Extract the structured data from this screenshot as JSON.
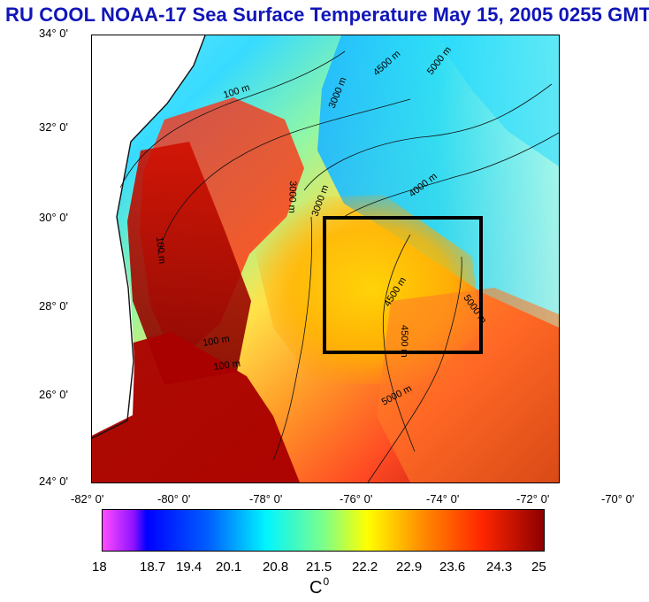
{
  "title": "RU COOL  NOAA-17 Sea Surface Temperature May 15, 2005 0255 GMT",
  "map": {
    "y_axis_labels": [
      "34° 0'",
      "32° 0'",
      "30° 0'",
      "28° 0'",
      "26° 0'",
      "24° 0'"
    ],
    "x_axis_labels": [
      "-82° 0'",
      "-80° 0'",
      "-78° 0'",
      "-76° 0'",
      "-74° 0'",
      "-72° 0'",
      "-70° 0'"
    ],
    "depth_labels": [
      "100 m",
      "3000 m",
      "4500 m",
      "5000 m",
      "3000 m",
      "4000 m",
      "100 m",
      "100 m",
      "100 m",
      "5000 m",
      "3000 m",
      "4500 m",
      "4500 m",
      "5000 m"
    ]
  },
  "colorbar": {
    "ticks": [
      "18",
      "18.7",
      "19.4",
      "20.1",
      "20.8",
      "21.5",
      "22.2",
      "22.9",
      "23.6",
      "24.3",
      "25"
    ],
    "unit_main": "C",
    "unit_sup": "0"
  }
}
